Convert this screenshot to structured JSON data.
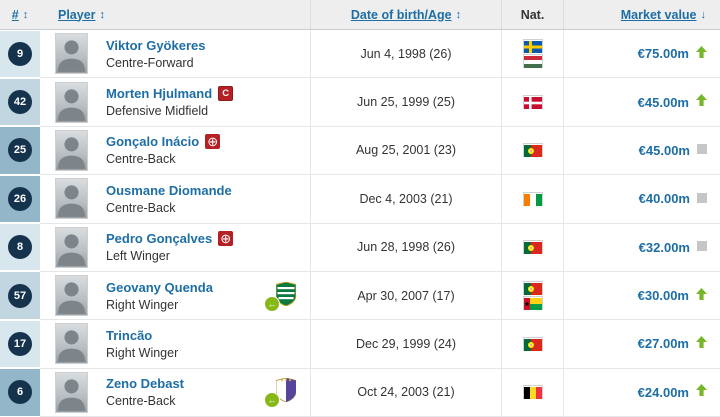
{
  "table": {
    "header": {
      "number_label": "#",
      "number_sort": "↕",
      "player_label": "Player",
      "player_sort": "↕",
      "dob_label": "Date of birth/Age",
      "dob_sort": "↕",
      "nat_label": "Nat.",
      "market_value_label": "Market value",
      "market_value_sort": "↓"
    },
    "colors": {
      "link_blue": "#1d6ea5",
      "trend_up_green": "#76b729",
      "trend_same_gray": "#c6c6c6",
      "number_circle_navy": "#16334d",
      "number_cell_light": "#d8e6ed",
      "number_cell_medium": "#c2d6e1",
      "number_cell_dark": "#93b6c8",
      "badge_red": "#b52025"
    },
    "rows": [
      {
        "number": "9",
        "name": "Viktor Gyökeres",
        "badge": null,
        "position": "Centre-Forward",
        "dob": "Jun 4, 1998 (26)",
        "nationalities": [
          "Sweden",
          "Hungary"
        ],
        "market_value": "€75.00m",
        "trend": "up",
        "num_shade": "light",
        "club": null,
        "transfer_in": false
      },
      {
        "number": "42",
        "name": "Morten Hjulmand",
        "badge": "captain",
        "badge_label": "C",
        "position": "Defensive Midfield",
        "dob": "Jun 25, 1999 (25)",
        "nationalities": [
          "Denmark"
        ],
        "market_value": "€45.00m",
        "trend": "up",
        "num_shade": "medium",
        "club": null,
        "transfer_in": false
      },
      {
        "number": "25",
        "name": "Gonçalo Inácio",
        "badge": "injured",
        "badge_label": "⊕",
        "position": "Centre-Back",
        "dob": "Aug 25, 2001 (23)",
        "nationalities": [
          "Portugal"
        ],
        "market_value": "€45.00m",
        "trend": "same",
        "num_shade": "dark",
        "club": null,
        "transfer_in": false
      },
      {
        "number": "26",
        "name": "Ousmane Diomande",
        "badge": null,
        "position": "Centre-Back",
        "dob": "Dec 4, 2003 (21)",
        "nationalities": [
          "Ivory Coast"
        ],
        "market_value": "€40.00m",
        "trend": "same",
        "num_shade": "dark",
        "club": null,
        "transfer_in": false
      },
      {
        "number": "8",
        "name": "Pedro Gonçalves",
        "badge": "injured",
        "badge_label": "⊕",
        "position": "Left Winger",
        "dob": "Jun 28, 1998 (26)",
        "nationalities": [
          "Portugal"
        ],
        "market_value": "€32.00m",
        "trend": "same",
        "num_shade": "light",
        "club": null,
        "transfer_in": false
      },
      {
        "number": "57",
        "name": "Geovany Quenda",
        "badge": null,
        "position": "Right Winger",
        "dob": "Apr 30, 2007 (17)",
        "nationalities": [
          "Portugal",
          "Guinea-Bissau"
        ],
        "market_value": "€30.00m",
        "trend": "up",
        "num_shade": "medium",
        "club": "Sporting CP",
        "transfer_in": true
      },
      {
        "number": "17",
        "name": "Trincão",
        "badge": null,
        "position": "Right Winger",
        "dob": "Dec 29, 1999 (24)",
        "nationalities": [
          "Portugal"
        ],
        "market_value": "€27.00m",
        "trend": "up",
        "num_shade": "light",
        "club": null,
        "transfer_in": false
      },
      {
        "number": "6",
        "name": "Zeno Debast",
        "badge": null,
        "position": "Centre-Back",
        "dob": "Oct 24, 2003 (21)",
        "nationalities": [
          "Belgium"
        ],
        "market_value": "€24.00m",
        "trend": "up",
        "num_shade": "dark",
        "club": "Anderlecht",
        "transfer_in": true
      }
    ]
  }
}
